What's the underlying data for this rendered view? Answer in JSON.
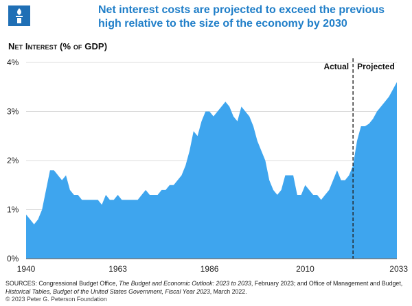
{
  "header": {
    "logo": "foundation-torch-icon",
    "title": "Net interest costs are projected to exceed the previous high relative to the size of the economy by 2030"
  },
  "chart_data": {
    "type": "area",
    "title": "Net Interest (% of GDP)",
    "ylabel": "Net Interest (% of GDP)",
    "xlabel": "",
    "ylim": [
      0,
      4
    ],
    "xlim": [
      1940,
      2033
    ],
    "y_ticks": [
      "0%",
      "1%",
      "2%",
      "3%",
      "4%"
    ],
    "x_ticks": [
      "1940",
      "1963",
      "1986",
      "2010",
      "2033"
    ],
    "divider_year": 2022,
    "annotations": {
      "actual": "Actual",
      "projected": "Projected"
    },
    "color": "#3ea5ee",
    "x": [
      1940,
      1941,
      1942,
      1943,
      1944,
      1945,
      1946,
      1947,
      1948,
      1949,
      1950,
      1951,
      1952,
      1953,
      1954,
      1955,
      1956,
      1957,
      1958,
      1959,
      1960,
      1961,
      1962,
      1963,
      1964,
      1965,
      1966,
      1967,
      1968,
      1969,
      1970,
      1971,
      1972,
      1973,
      1974,
      1975,
      1976,
      1977,
      1978,
      1979,
      1980,
      1981,
      1982,
      1983,
      1984,
      1985,
      1986,
      1987,
      1988,
      1989,
      1990,
      1991,
      1992,
      1993,
      1994,
      1995,
      1996,
      1997,
      1998,
      1999,
      2000,
      2001,
      2002,
      2003,
      2004,
      2005,
      2006,
      2007,
      2008,
      2009,
      2010,
      2011,
      2012,
      2013,
      2014,
      2015,
      2016,
      2017,
      2018,
      2019,
      2020,
      2021,
      2022,
      2023,
      2024,
      2025,
      2026,
      2027,
      2028,
      2029,
      2030,
      2031,
      2032,
      2033
    ],
    "values": [
      0.9,
      0.8,
      0.7,
      0.8,
      1.0,
      1.4,
      1.8,
      1.8,
      1.7,
      1.6,
      1.7,
      1.4,
      1.3,
      1.3,
      1.2,
      1.2,
      1.2,
      1.2,
      1.2,
      1.1,
      1.3,
      1.2,
      1.2,
      1.3,
      1.2,
      1.2,
      1.2,
      1.2,
      1.2,
      1.3,
      1.4,
      1.3,
      1.3,
      1.3,
      1.4,
      1.4,
      1.5,
      1.5,
      1.6,
      1.7,
      1.9,
      2.2,
      2.6,
      2.5,
      2.8,
      3.0,
      3.0,
      2.9,
      3.0,
      3.1,
      3.2,
      3.1,
      2.9,
      2.8,
      3.1,
      3.0,
      2.9,
      2.7,
      2.4,
      2.2,
      2.0,
      1.6,
      1.4,
      1.3,
      1.4,
      1.7,
      1.7,
      1.7,
      1.3,
      1.3,
      1.5,
      1.4,
      1.3,
      1.3,
      1.2,
      1.3,
      1.4,
      1.6,
      1.8,
      1.6,
      1.6,
      1.7,
      1.9,
      2.4,
      2.7,
      2.7,
      2.75,
      2.85,
      3.0,
      3.1,
      3.2,
      3.3,
      3.45,
      3.6
    ]
  },
  "footer": {
    "sources_label": "SOURCES: Congressional Budget Office,",
    "cbo_title": "The Budget and Economic Outlook: 2023 to 2033",
    "cbo_date": ", February 2023; and Office of Management and Budget,",
    "omb_title": "Historical Tables, Budget of the United States Government, Fiscal Year 2023",
    "omb_date": ", March 2022.",
    "copyright": "© 2023 Peter G. Peterson Foundation"
  }
}
